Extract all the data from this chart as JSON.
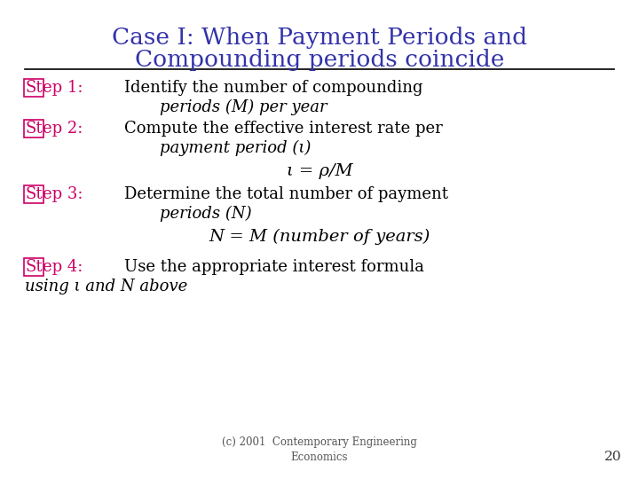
{
  "title_line1": "Case I: When Payment Periods and",
  "title_line2": "Compounding periods coincide",
  "title_color": "#3333aa",
  "bg_color": "#ffffff",
  "line_color": "#000000",
  "step_color": "#cc0066",
  "body_color": "#000000",
  "footer_text": "(c) 2001  Contemporary Engineering\nEconomics",
  "page_number": "20",
  "title_fontsize": 19,
  "body_fontsize": 13,
  "label_fontsize": 13
}
